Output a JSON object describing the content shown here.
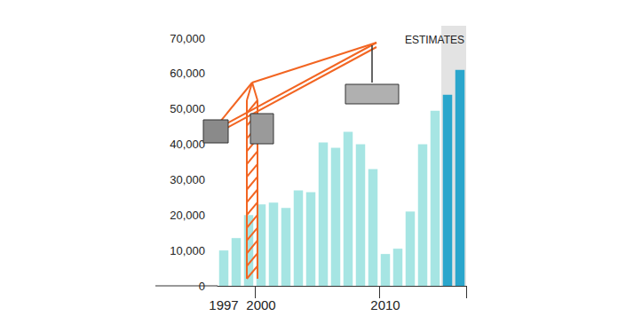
{
  "chart_data": {
    "type": "bar",
    "categories": [
      "1997",
      null,
      null,
      "2000",
      null,
      null,
      null,
      null,
      null,
      null,
      null,
      null,
      null,
      "2010",
      null,
      null,
      null,
      null,
      null,
      null
    ],
    "values": [
      10000,
      13500,
      20000,
      23000,
      23500,
      22000,
      27000,
      26500,
      40500,
      39000,
      43500,
      40000,
      33000,
      9000,
      10500,
      21000,
      40000,
      49500,
      54000,
      61000
    ],
    "colors": [
      "#a6e5e3",
      "#a6e5e3",
      "#a6e5e3",
      "#a6e5e3",
      "#a6e5e3",
      "#a6e5e3",
      "#a6e5e3",
      "#a6e5e3",
      "#a6e5e3",
      "#a6e5e3",
      "#a6e5e3",
      "#a6e5e3",
      "#a6e5e3",
      "#a6e5e3",
      "#a6e5e3",
      "#a6e5e3",
      "#a6e5e3",
      "#a6e5e3",
      "#2aa6cc",
      "#2aa6cc"
    ],
    "ylim": [
      0,
      70000
    ],
    "yticks": [
      0,
      {
        "value": 10000,
        "label": "10,000"
      },
      {
        "value": 20000,
        "label": "20,000"
      },
      {
        "value": 30000,
        "label": "30,000"
      },
      {
        "value": 40000,
        "label": "40,000"
      },
      {
        "value": 50000,
        "label": "50,000"
      },
      {
        "value": 60000,
        "label": "60,000"
      },
      {
        "value": 70000,
        "label": "70,000"
      }
    ],
    "grid": false,
    "annotations": [
      {
        "text": "ESTIMATES",
        "indices": [
          18,
          19
        ]
      }
    ]
  }
}
